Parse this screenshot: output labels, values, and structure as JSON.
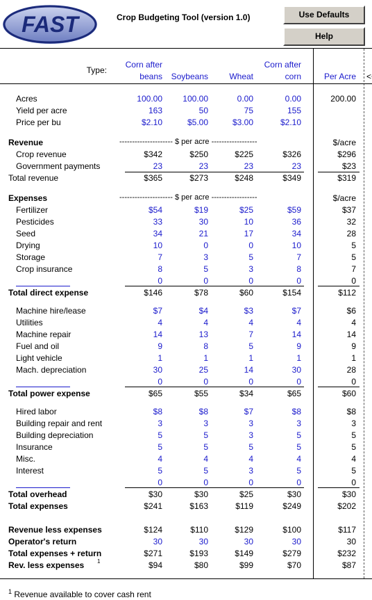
{
  "header": {
    "logo_text": "FAST",
    "title": "Crop Budgeting Tool (version 1.0)",
    "use_defaults_label": "Use Defaults",
    "help_label": "Help"
  },
  "columns": {
    "type_label": "Type:",
    "col1_line1": "Corn after",
    "col1_line2": "beans",
    "col2": "Soybeans",
    "col3": "Wheat",
    "col4_line1": "Corn after",
    "col4_line2": "corn",
    "per_acre": "Per Acre",
    "arrow": "<<"
  },
  "sections": {
    "revenue_label": "Revenue",
    "revenue_dashes": "--------------------- $ per acre ------------------",
    "revenue_unit": "$/acre",
    "expenses_label": "Expenses",
    "expenses_dashes": "--------------------- $ per acre ------------------",
    "expenses_unit": "$/acre"
  },
  "rows": [
    {
      "label": "Acres",
      "v": [
        "100.00",
        "100.00",
        "0.00",
        "0.00"
      ],
      "pa": "200.00",
      "blue": true,
      "bold": false,
      "indent": true
    },
    {
      "label": "Yield per acre",
      "v": [
        "163",
        "50",
        "75",
        "155"
      ],
      "pa": "",
      "blue": true,
      "bold": false,
      "indent": true
    },
    {
      "label": "Price per bu",
      "v": [
        "$2.10",
        "$5.00",
        "$3.00",
        "$2.10"
      ],
      "pa": "",
      "blue": true,
      "bold": false,
      "indent": true
    },
    {
      "label": "Crop revenue",
      "v": [
        "$342",
        "$250",
        "$225",
        "$326"
      ],
      "pa": "$296",
      "blue": false,
      "bold": false,
      "indent": true
    },
    {
      "label": "Government payments",
      "v": [
        "23",
        "23",
        "23",
        "23"
      ],
      "pa": "$23",
      "blue": true,
      "bold": false,
      "indent": true
    },
    {
      "label": "Total revenue",
      "v": [
        "$365",
        "$273",
        "$248",
        "$349"
      ],
      "pa": "$319",
      "blue": false,
      "bold": false,
      "indent": false
    },
    {
      "label": "Fertilizer",
      "v": [
        "$54",
        "$19",
        "$25",
        "$59"
      ],
      "pa": "$37",
      "blue": true,
      "bold": false,
      "indent": true
    },
    {
      "label": "Pesticides",
      "v": [
        "33",
        "30",
        "10",
        "36"
      ],
      "pa": "32",
      "blue": true,
      "bold": false,
      "indent": true
    },
    {
      "label": "Seed",
      "v": [
        "34",
        "21",
        "17",
        "34"
      ],
      "pa": "28",
      "blue": true,
      "bold": false,
      "indent": true
    },
    {
      "label": "Drying",
      "v": [
        "10",
        "0",
        "0",
        "10"
      ],
      "pa": "5",
      "blue": true,
      "bold": false,
      "indent": true
    },
    {
      "label": "Storage",
      "v": [
        "7",
        "3",
        "5",
        "7"
      ],
      "pa": "5",
      "blue": true,
      "bold": false,
      "indent": true
    },
    {
      "label": "Crop insurance",
      "v": [
        "8",
        "5",
        "3",
        "8"
      ],
      "pa": "7",
      "blue": true,
      "bold": false,
      "indent": true
    },
    {
      "label": "",
      "v": [
        "0",
        "0",
        "0",
        "0"
      ],
      "pa": "0",
      "blue": true,
      "bold": false,
      "indent": true
    },
    {
      "label": "Total direct expense",
      "v": [
        "$146",
        "$78",
        "$60",
        "$154"
      ],
      "pa": "$112",
      "blue": false,
      "bold": true,
      "indent": false
    },
    {
      "label": "Machine hire/lease",
      "v": [
        "$7",
        "$4",
        "$3",
        "$7"
      ],
      "pa": "$6",
      "blue": true,
      "bold": false,
      "indent": true
    },
    {
      "label": "Utilities",
      "v": [
        "4",
        "4",
        "4",
        "4"
      ],
      "pa": "4",
      "blue": true,
      "bold": false,
      "indent": true
    },
    {
      "label": "Machine repair",
      "v": [
        "14",
        "13",
        "7",
        "14"
      ],
      "pa": "14",
      "blue": true,
      "bold": false,
      "indent": true
    },
    {
      "label": "Fuel and oil",
      "v": [
        "9",
        "8",
        "5",
        "9"
      ],
      "pa": "9",
      "blue": true,
      "bold": false,
      "indent": true
    },
    {
      "label": "Light vehicle",
      "v": [
        "1",
        "1",
        "1",
        "1"
      ],
      "pa": "1",
      "blue": true,
      "bold": false,
      "indent": true
    },
    {
      "label": "Mach. depreciation",
      "v": [
        "30",
        "25",
        "14",
        "30"
      ],
      "pa": "28",
      "blue": true,
      "bold": false,
      "indent": true
    },
    {
      "label": "",
      "v": [
        "0",
        "0",
        "0",
        "0"
      ],
      "pa": "0",
      "blue": true,
      "bold": false,
      "indent": true
    },
    {
      "label": "Total power expense",
      "v": [
        "$65",
        "$55",
        "$34",
        "$65"
      ],
      "pa": "$60",
      "blue": false,
      "bold": true,
      "indent": false
    },
    {
      "label": "Hired labor",
      "v": [
        "$8",
        "$8",
        "$7",
        "$8"
      ],
      "pa": "$8",
      "blue": true,
      "bold": false,
      "indent": true
    },
    {
      "label": "Building repair and rent",
      "v": [
        "3",
        "3",
        "3",
        "3"
      ],
      "pa": "3",
      "blue": true,
      "bold": false,
      "indent": true
    },
    {
      "label": "Building depreciation",
      "v": [
        "5",
        "5",
        "3",
        "5"
      ],
      "pa": "5",
      "blue": true,
      "bold": false,
      "indent": true
    },
    {
      "label": "Insurance",
      "v": [
        "5",
        "5",
        "5",
        "5"
      ],
      "pa": "5",
      "blue": true,
      "bold": false,
      "indent": true
    },
    {
      "label": "Misc.",
      "v": [
        "4",
        "4",
        "4",
        "4"
      ],
      "pa": "4",
      "blue": true,
      "bold": false,
      "indent": true
    },
    {
      "label": "Interest",
      "v": [
        "5",
        "5",
        "3",
        "5"
      ],
      "pa": "5",
      "blue": true,
      "bold": false,
      "indent": true
    },
    {
      "label": "",
      "v": [
        "0",
        "0",
        "0",
        "0"
      ],
      "pa": "0",
      "blue": true,
      "bold": false,
      "indent": true
    },
    {
      "label": "Total overhead",
      "v": [
        "$30",
        "$30",
        "$25",
        "$30"
      ],
      "pa": "$30",
      "blue": false,
      "bold": true,
      "indent": false
    },
    {
      "label": "Total expenses",
      "v": [
        "$241",
        "$163",
        "$119",
        "$249"
      ],
      "pa": "$202",
      "blue": false,
      "bold": true,
      "indent": false
    },
    {
      "label": "Revenue less expenses",
      "v": [
        "$124",
        "$110",
        "$129",
        "$100"
      ],
      "pa": "$117",
      "blue": false,
      "bold": true,
      "indent": false
    },
    {
      "label": "Operator's return",
      "v": [
        "30",
        "30",
        "30",
        "30"
      ],
      "pa": "30",
      "blue": true,
      "bold": true,
      "indent": false
    },
    {
      "label": "Total expenses + return",
      "v": [
        "$271",
        "$193",
        "$149",
        "$279"
      ],
      "pa": "$232",
      "blue": false,
      "bold": true,
      "indent": false
    },
    {
      "label": "Rev. less expenses",
      "v": [
        "$94",
        "$80",
        "$99",
        "$70"
      ],
      "pa": "$87",
      "blue": false,
      "bold": true,
      "indent": false,
      "sup": "1"
    }
  ],
  "footnote": {
    "sup": "1",
    "text": "Revenue available to cover cash rent"
  },
  "colors": {
    "input_blue": "#1a1acc",
    "button_gray": "#d4d0c8",
    "logo_navy": "#1b2a7a"
  }
}
